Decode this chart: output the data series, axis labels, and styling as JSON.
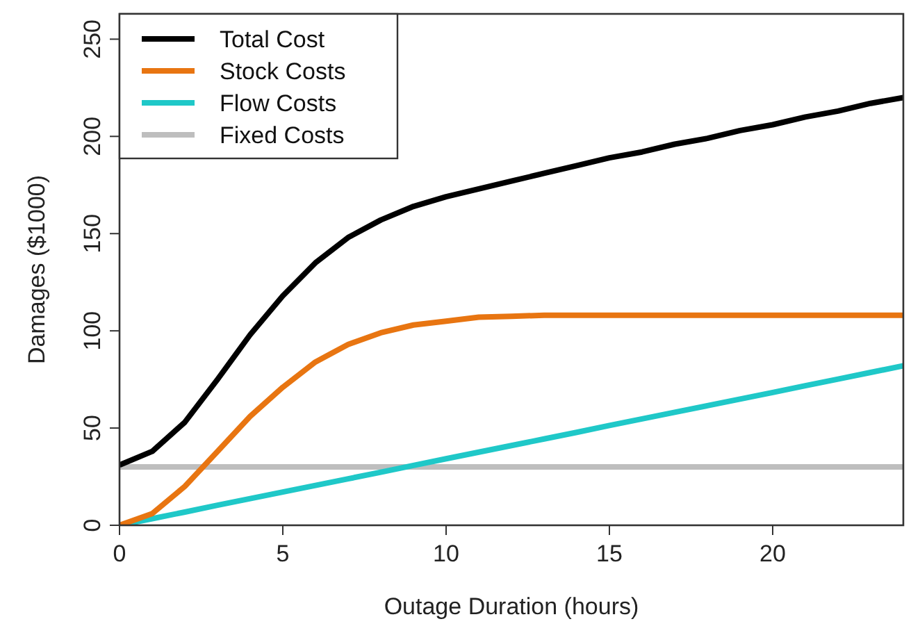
{
  "chart_data": {
    "type": "line",
    "xlabel": "Outage Duration (hours)",
    "ylabel": "Damages ($1000)",
    "x": [
      0,
      1,
      2,
      3,
      4,
      5,
      6,
      7,
      8,
      9,
      10,
      11,
      12,
      13,
      14,
      15,
      16,
      17,
      18,
      19,
      20,
      21,
      22,
      23,
      24
    ],
    "xlim": [
      0,
      24
    ],
    "xticks": [
      0,
      5,
      10,
      15,
      20
    ],
    "ylim": [
      0,
      263
    ],
    "yticks": [
      0,
      50,
      100,
      150,
      200,
      250
    ],
    "legend": "top left",
    "grid": false,
    "line_style": "solid",
    "marker": "none",
    "series": [
      {
        "name": "Total Cost",
        "color": "#000000",
        "values": [
          31,
          38,
          53,
          75,
          98,
          118,
          135,
          148,
          157,
          164,
          169,
          173,
          177,
          181,
          185,
          189,
          192,
          196,
          199,
          203,
          206,
          210,
          213,
          217,
          220
        ]
      },
      {
        "name": "Stock Costs",
        "color": "#e87511",
        "values": [
          0,
          6,
          20,
          38,
          56,
          71,
          84,
          93,
          99,
          103,
          105,
          107,
          107.5,
          108,
          108,
          108,
          108,
          108,
          108,
          108,
          108,
          108,
          108,
          108,
          108
        ]
      },
      {
        "name": "Flow Costs",
        "color": "#1fc8c8",
        "values": [
          0,
          3.4,
          6.8,
          10.3,
          13.7,
          17.1,
          20.5,
          23.9,
          27.3,
          30.8,
          34.2,
          37.6,
          41,
          44.4,
          47.8,
          51.3,
          54.7,
          58.1,
          61.5,
          64.9,
          68.3,
          71.8,
          75.2,
          78.6,
          82
        ]
      },
      {
        "name": "Fixed Costs",
        "color": "#bebebe",
        "values": [
          30,
          30,
          30,
          30,
          30,
          30,
          30,
          30,
          30,
          30,
          30,
          30,
          30,
          30,
          30,
          30,
          30,
          30,
          30,
          30,
          30,
          30,
          30,
          30,
          30
        ]
      }
    ]
  }
}
